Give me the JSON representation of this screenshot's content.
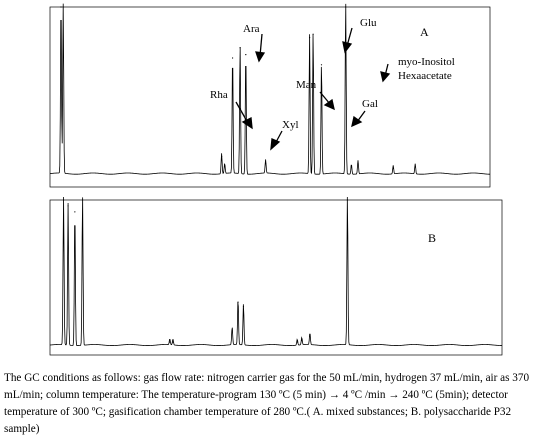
{
  "chart_data": [
    {
      "type": "line",
      "panel_letter": "A",
      "annotations": [
        "Ara",
        "Glu",
        "myo-Inositol",
        "Hexaacetate",
        "Rha",
        "Man",
        "Xyl",
        "Gal"
      ],
      "peaks": [
        {
          "t": 0.025,
          "h": 1.02
        },
        {
          "t": 0.03,
          "h": 1.02
        },
        {
          "t": 0.39,
          "h": 0.12
        },
        {
          "t": 0.397,
          "h": 0.06
        },
        {
          "t": 0.415,
          "h": 0.7
        },
        {
          "t": 0.432,
          "h": 0.76
        },
        {
          "t": 0.445,
          "h": 0.72
        },
        {
          "t": 0.49,
          "h": 0.08
        },
        {
          "t": 0.59,
          "h": 0.82
        },
        {
          "t": 0.598,
          "h": 0.84
        },
        {
          "t": 0.617,
          "h": 0.66
        },
        {
          "t": 0.672,
          "h": 1.02
        },
        {
          "t": 0.685,
          "h": 0.06
        },
        {
          "t": 0.7,
          "h": 0.08
        },
        {
          "t": 0.78,
          "h": 0.05
        },
        {
          "t": 0.83,
          "h": 0.06
        }
      ]
    },
    {
      "type": "line",
      "panel_letter": "B",
      "peaks": [
        {
          "t": 0.03,
          "h": 1.02
        },
        {
          "t": 0.04,
          "h": 0.96
        },
        {
          "t": 0.055,
          "h": 0.92
        },
        {
          "t": 0.072,
          "h": 1.02
        },
        {
          "t": 0.265,
          "h": 0.04
        },
        {
          "t": 0.272,
          "h": 0.04
        },
        {
          "t": 0.403,
          "h": 0.12
        },
        {
          "t": 0.416,
          "h": 0.31
        },
        {
          "t": 0.428,
          "h": 0.28
        },
        {
          "t": 0.547,
          "h": 0.04
        },
        {
          "t": 0.557,
          "h": 0.05
        },
        {
          "t": 0.575,
          "h": 0.08
        },
        {
          "t": 0.658,
          "h": 1.02
        }
      ]
    }
  ],
  "caption": "The GC conditions as follows: gas flow rate: nitrogen carrier gas for the 50 mL/min, hydrogen 37 mL/min, air as 370 mL/min; column temperature: The temperature-program 130 ºC (5 min) → 4 ºC /min → 240 ºC (5min); detector temperature of 300 ºC; gasification chamber temperature of 280 ºC.( A. mixed substances; B. polysaccharide P32 sample)"
}
